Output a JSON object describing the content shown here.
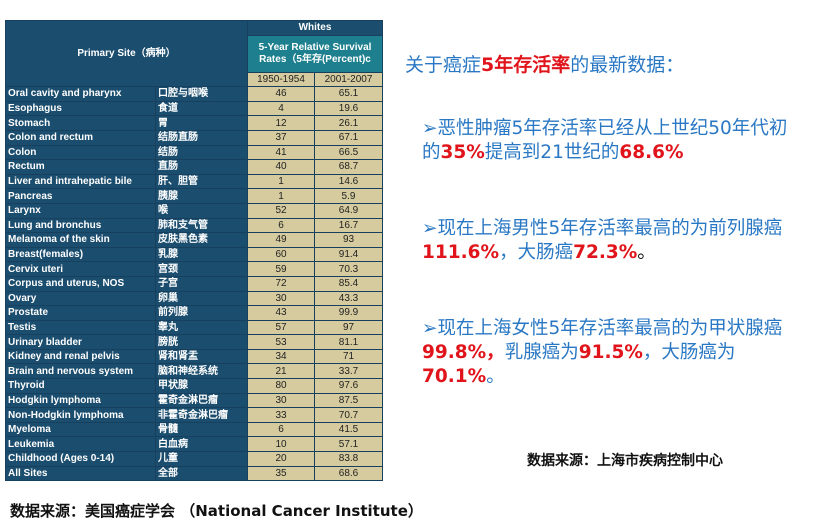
{
  "table": {
    "group_header": "Whites",
    "site_header": "Primary Site（病种）",
    "metric_header": "5-Year Relative Survival Rates（5年存(Percent)c",
    "periods": [
      "1950-1954",
      "2001-2007"
    ],
    "rows": [
      [
        "Oral cavity and pharynx",
        "口腔与咽喉",
        "46",
        "65.1"
      ],
      [
        "Esophagus",
        "食道",
        "4",
        "19.6"
      ],
      [
        "Stomach",
        "胃",
        "12",
        "26.1"
      ],
      [
        "Colon and rectum",
        "结肠直肠",
        "37",
        "67.1"
      ],
      [
        "Colon",
        "结肠",
        "41",
        "66.5"
      ],
      [
        "Rectum",
        "直肠",
        "40",
        "68.7"
      ],
      [
        "Liver and intrahepatic bile",
        "肝、胆管",
        "1",
        "14.6"
      ],
      [
        "Pancreas",
        "胰腺",
        "1",
        "5.9"
      ],
      [
        "Larynx",
        "喉",
        "52",
        "64.9"
      ],
      [
        "Lung and bronchus",
        "肺和支气管",
        "6",
        "16.7"
      ],
      [
        "Melanoma of the skin",
        "皮肤黑色素",
        "49",
        "93"
      ],
      [
        "Breast(females)",
        "乳腺",
        "60",
        "91.4"
      ],
      [
        "Cervix uteri",
        "宫颈",
        "59",
        "70.3"
      ],
      [
        "Corpus and uterus, NOS",
        "子宫",
        "72",
        "85.4"
      ],
      [
        "Ovary",
        "卵巢",
        "30",
        "43.3"
      ],
      [
        "Prostate",
        "前列腺",
        "43",
        "99.9"
      ],
      [
        "Testis",
        "睾丸",
        "57",
        "97"
      ],
      [
        "Urinary bladder",
        "膀胱",
        "53",
        "81.1"
      ],
      [
        "Kidney and renal pelvis",
        "肾和肾盂",
        "34",
        "71"
      ],
      [
        "Brain and nervous system",
        "脑和神经系统",
        "21",
        "33.7"
      ],
      [
        "Thyroid",
        "甲状腺",
        "80",
        "97.6"
      ],
      [
        "Hodgkin lymphoma",
        "霍奇金淋巴瘤",
        "30",
        "87.5"
      ],
      [
        "Non-Hodgkin lymphoma",
        "非霍奇金淋巴瘤",
        "33",
        "70.7"
      ],
      [
        "Myeloma",
        "骨髓",
        "6",
        "41.5"
      ],
      [
        "Leukemia",
        "白血病",
        "10",
        "57.1"
      ],
      [
        "Childhood (Ages 0-14)",
        "儿童",
        "20",
        "83.8"
      ],
      [
        "All Sites",
        "全部",
        "35",
        "68.6"
      ]
    ]
  },
  "title": {
    "a": "关于癌症",
    "b": "5年存活率",
    "c": "的最新数据："
  },
  "bullets": [
    {
      "a": "➢恶性肿瘤5年存活率已经从上世纪50年代初的",
      "b": "35%",
      "c": "提高到21世纪的",
      "d": "68.6%"
    },
    {
      "a": "➢现在上海男性5年存活率最高的为前列腺癌",
      "b": "111.6%",
      "c": "，大肠癌",
      "d": "72.3%",
      "e": "。"
    },
    {
      "a": "➢现在上海女性5年存活率最高的为甲状腺癌",
      "b": "99.8%，",
      "c": "乳腺癌为",
      "d": "91.5%",
      "e": "，大肠癌为",
      "f": "70.1%",
      "g": "。"
    }
  ],
  "source_shanghai": "数据来源：上海市疾病控制中心",
  "source_nci": "数据来源：美国癌症学会 （National Cancer Institute）",
  "colors": {
    "header": "#1b4d6e",
    "teal": "#1e7f8e",
    "cell": "#d6cb9f",
    "text_blue": "#2a78c4",
    "highlight_red": "#e0141a"
  }
}
